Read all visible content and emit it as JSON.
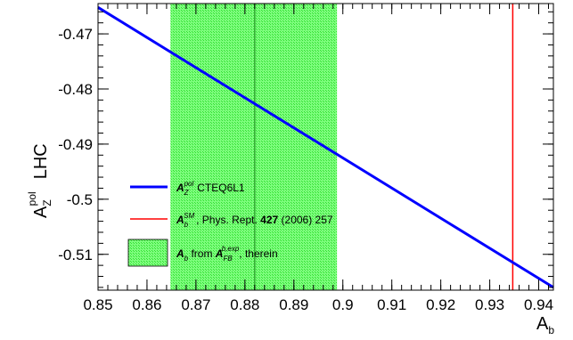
{
  "chart_data": {
    "type": "line",
    "x_range": [
      0.85,
      0.943
    ],
    "y_range": [
      -0.5165,
      -0.4645
    ],
    "x_ticks": [
      "0.85",
      "0.86",
      "0.87",
      "0.88",
      "0.89",
      "0.9",
      "0.91",
      "0.92",
      "0.93",
      "0.94"
    ],
    "y_ticks": [
      "-0.47",
      "-0.48",
      "-0.49",
      "-0.5",
      "-0.51"
    ],
    "xlabel": "A",
    "xlabel_sub": "b",
    "ylabel_main": "A",
    "ylabel_sup": "pol",
    "ylabel_sub": "Z",
    "ylabel_suffix": "LHC",
    "series": [
      {
        "name": "CTEQ6L1",
        "legend_main": "A",
        "legend_sup": "pol",
        "legend_sub": "Z",
        "legend_text": "CTEQ6L1",
        "color": "#0000ff",
        "x": [
          0.85,
          0.943
        ],
        "y": [
          -0.4652,
          -0.516
        ]
      }
    ],
    "vertical_line": {
      "x": 0.9347,
      "color": "#ff0000",
      "legend_main": "A",
      "legend_sup": "SM",
      "legend_sub": "b",
      "legend_text_before": ", Phys. Rept. ",
      "legend_bold": "427",
      "legend_text_after": " (2006) 257"
    },
    "band": {
      "x_min": 0.8648,
      "x_max": 0.8988,
      "center": 0.882,
      "color": "#66ff66",
      "center_color": "#33aa33",
      "legend_main": "A",
      "legend_sub": "b",
      "legend_mid": " from ",
      "legend_main2": "A",
      "legend_sup2": "b,exp",
      "legend_sub2": "FB",
      "legend_end": ", therein"
    },
    "legend_position": "bottom-left",
    "grid": false
  }
}
